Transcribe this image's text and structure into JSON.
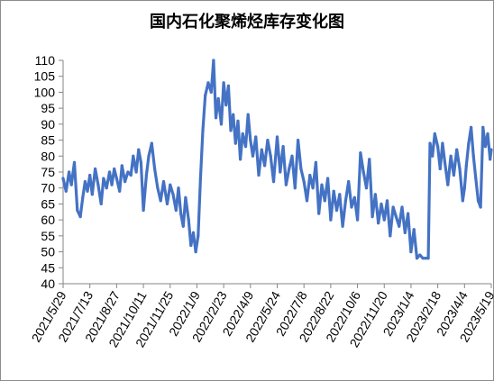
{
  "chart_data": {
    "type": "line",
    "title": "国内石化聚烯烃库存变化图",
    "xlabel": "",
    "ylabel": "",
    "ylim": [
      40,
      110
    ],
    "yticks": [
      40,
      45,
      50,
      55,
      60,
      65,
      70,
      75,
      80,
      85,
      90,
      95,
      100,
      105,
      110
    ],
    "xlim": [
      "2021-05-29",
      "2023-05-19"
    ],
    "xticks": [
      "2021/5/29",
      "2021/7/13",
      "2021/8/27",
      "2021/10/11",
      "2021/11/25",
      "2022/1/9",
      "2022/2/23",
      "2022/4/9",
      "2022/5/24",
      "2022/7/8",
      "2022/8/22",
      "2022/10/6",
      "2022/11/20",
      "2023/1/4",
      "2023/2/18",
      "2023/4/4",
      "2023/5/19"
    ],
    "grid": false,
    "legend": "none",
    "series": [
      {
        "color": "#4472c4",
        "x": [
          "2021-05-29",
          "2021-06-03",
          "2021-06-08",
          "2021-06-12",
          "2021-06-17",
          "2021-06-22",
          "2021-06-27",
          "2021-07-01",
          "2021-07-05",
          "2021-07-09",
          "2021-07-13",
          "2021-07-17",
          "2021-07-22",
          "2021-07-27",
          "2021-08-01",
          "2021-08-05",
          "2021-08-10",
          "2021-08-15",
          "2021-08-19",
          "2021-08-23",
          "2021-08-27",
          "2021-09-01",
          "2021-09-05",
          "2021-09-10",
          "2021-09-15",
          "2021-09-20",
          "2021-09-24",
          "2021-09-29",
          "2021-10-03",
          "2021-10-07",
          "2021-10-11",
          "2021-10-16",
          "2021-10-20",
          "2021-10-25",
          "2021-10-30",
          "2021-11-04",
          "2021-11-09",
          "2021-11-14",
          "2021-11-20",
          "2021-11-25",
          "2021-11-30",
          "2021-12-05",
          "2021-12-09",
          "2021-12-13",
          "2021-12-17",
          "2021-12-21",
          "2021-12-26",
          "2021-12-30",
          "2022-01-03",
          "2022-01-07",
          "2022-01-11",
          "2022-01-15",
          "2022-01-19",
          "2022-01-23",
          "2022-01-28",
          "2022-02-02",
          "2022-02-06",
          "2022-02-10",
          "2022-02-14",
          "2022-02-19",
          "2022-02-23",
          "2022-02-27",
          "2022-03-03",
          "2022-03-07",
          "2022-03-11",
          "2022-03-15",
          "2022-03-19",
          "2022-03-23",
          "2022-03-27",
          "2022-04-01",
          "2022-04-05",
          "2022-04-09",
          "2022-04-13",
          "2022-04-18",
          "2022-04-23",
          "2022-04-28",
          "2022-05-03",
          "2022-05-08",
          "2022-05-13",
          "2022-05-18",
          "2022-05-24",
          "2022-05-29",
          "2022-06-03",
          "2022-06-08",
          "2022-06-13",
          "2022-06-18",
          "2022-06-23",
          "2022-06-28",
          "2022-07-03",
          "2022-07-08",
          "2022-07-13",
          "2022-07-18",
          "2022-07-23",
          "2022-07-28",
          "2022-08-02",
          "2022-08-07",
          "2022-08-12",
          "2022-08-17",
          "2022-08-22",
          "2022-08-27",
          "2022-09-01",
          "2022-09-06",
          "2022-09-11",
          "2022-09-16",
          "2022-09-21",
          "2022-09-26",
          "2022-10-01",
          "2022-10-06",
          "2022-10-11",
          "2022-10-16",
          "2022-10-21",
          "2022-10-26",
          "2022-10-31",
          "2022-11-05",
          "2022-11-10",
          "2022-11-15",
          "2022-11-20",
          "2022-11-25",
          "2022-11-30",
          "2022-12-05",
          "2022-12-10",
          "2022-12-15",
          "2022-12-20",
          "2022-12-25",
          "2022-12-30",
          "2023-01-04",
          "2023-01-09",
          "2023-01-14",
          "2023-01-19",
          "2023-01-24",
          "2023-01-29",
          "2023-02-02",
          "2023-02-05",
          "2023-02-09",
          "2023-02-13",
          "2023-02-18",
          "2023-02-22",
          "2023-02-26",
          "2023-03-02",
          "2023-03-07",
          "2023-03-12",
          "2023-03-17",
          "2023-03-22",
          "2023-03-27",
          "2023-04-01",
          "2023-04-04",
          "2023-04-07",
          "2023-04-11",
          "2023-04-15",
          "2023-04-19",
          "2023-04-23",
          "2023-04-27",
          "2023-05-01",
          "2023-05-05",
          "2023-05-09",
          "2023-05-13",
          "2023-05-17",
          "2023-05-19"
        ],
        "values": [
          73,
          69,
          75,
          71,
          78,
          63,
          61,
          67,
          72,
          69,
          74,
          68,
          76,
          71,
          65,
          73,
          70,
          75,
          71,
          76,
          73,
          69,
          77,
          72,
          75,
          74,
          80,
          75,
          82,
          78,
          63,
          74,
          80,
          84,
          76,
          70,
          66,
          72,
          65,
          71,
          68,
          63,
          70,
          62,
          58,
          67,
          60,
          52,
          56,
          50,
          55,
          73,
          88,
          99,
          103,
          100,
          110,
          92,
          98,
          90,
          103,
          96,
          102,
          88,
          93,
          84,
          91,
          79,
          87,
          83,
          93,
          85,
          80,
          86,
          74,
          82,
          77,
          85,
          80,
          72,
          86,
          75,
          83,
          71,
          76,
          80,
          70,
          85,
          76,
          72,
          66,
          74,
          70,
          78,
          62,
          71,
          66,
          73,
          60,
          69,
          63,
          68,
          58,
          66,
          72,
          64,
          67,
          60,
          81,
          75,
          70,
          79,
          61,
          68,
          59,
          65,
          60,
          66,
          55,
          64,
          61,
          58,
          64,
          56,
          62,
          50,
          57,
          48,
          49,
          48,
          48,
          48,
          84,
          80,
          87,
          83,
          76,
          84,
          78,
          71,
          80,
          74,
          82,
          76,
          66,
          70,
          77,
          84,
          89,
          80,
          73,
          66,
          64,
          89,
          83,
          87,
          79,
          82
        ]
      }
    ]
  }
}
